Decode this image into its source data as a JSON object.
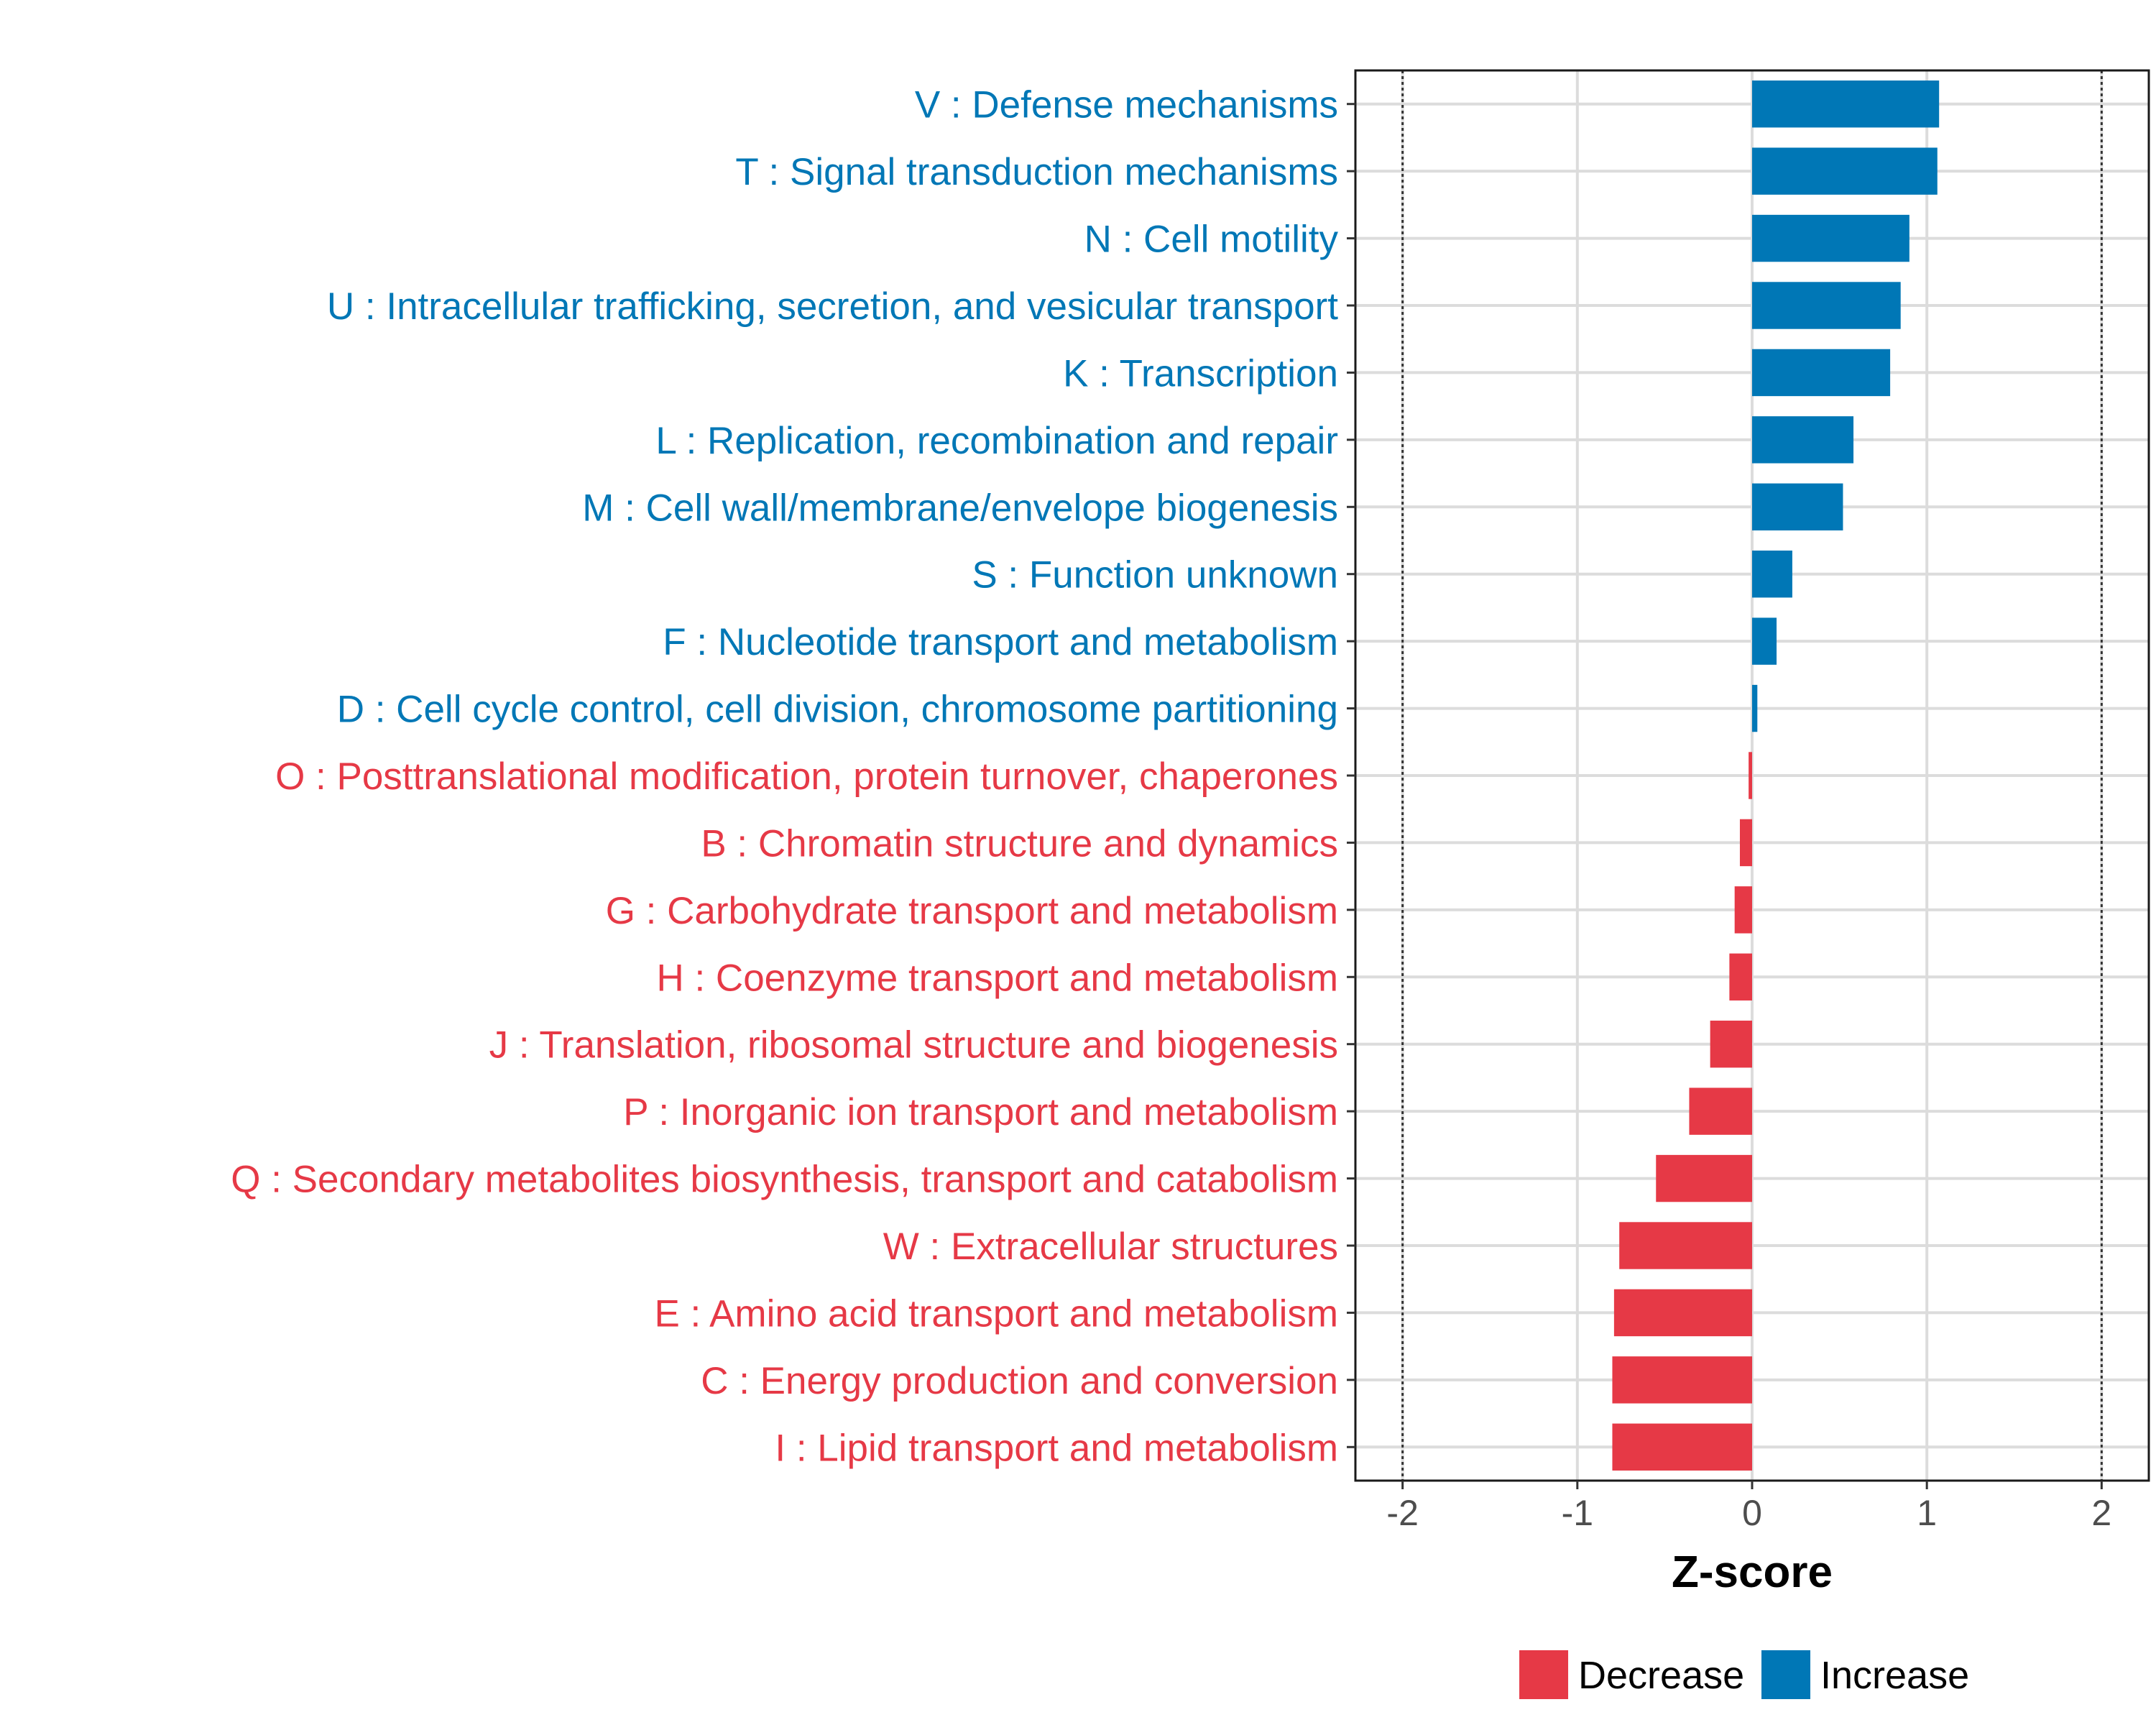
{
  "chart_data": {
    "type": "bar",
    "orientation": "horizontal",
    "title": "",
    "xlabel": "Z-score",
    "ylabel": "",
    "xlim": [
      -2.27,
      2.27
    ],
    "xticks": [
      -2,
      -1,
      0,
      1,
      2
    ],
    "xtick_labels": [
      "-2",
      "-1",
      "0",
      "1",
      "2"
    ],
    "reference_lines": [
      -2,
      2
    ],
    "grid": true,
    "legend_position": "bottom",
    "legend": [
      {
        "label": "Decrease",
        "color": "#E63946"
      },
      {
        "label": "Increase",
        "color": "#0077B6"
      }
    ],
    "categories": [
      "V : Defense mechanisms",
      "T : Signal transduction mechanisms",
      "N : Cell motility",
      "U : Intracellular trafficking, secretion, and vesicular transport",
      "K : Transcription",
      "L : Replication, recombination and repair",
      "M : Cell wall/membrane/envelope biogenesis",
      "S : Function unknown",
      "F : Nucleotide transport and metabolism",
      "D : Cell cycle control, cell division, chromosome partitioning",
      "O : Posttranslational modification, protein turnover, chaperones",
      "B : Chromatin structure and dynamics",
      "G : Carbohydrate transport and metabolism",
      "H : Coenzyme transport and metabolism",
      "J : Translation, ribosomal structure and biogenesis",
      "P : Inorganic ion transport and metabolism",
      "Q : Secondary metabolites biosynthesis, transport and catabolism",
      "W : Extracellular structures",
      "E : Amino acid transport and metabolism",
      "C : Energy production and conversion",
      "I : Lipid transport and metabolism"
    ],
    "values": [
      1.07,
      1.06,
      0.9,
      0.85,
      0.79,
      0.58,
      0.52,
      0.23,
      0.14,
      0.03,
      -0.02,
      -0.07,
      -0.1,
      -0.13,
      -0.24,
      -0.36,
      -0.55,
      -0.76,
      -0.79,
      -0.8,
      -0.8
    ],
    "groups": [
      "Increase",
      "Increase",
      "Increase",
      "Increase",
      "Increase",
      "Increase",
      "Increase",
      "Increase",
      "Increase",
      "Increase",
      "Decrease",
      "Decrease",
      "Decrease",
      "Decrease",
      "Decrease",
      "Decrease",
      "Decrease",
      "Decrease",
      "Decrease",
      "Decrease",
      "Decrease"
    ]
  }
}
